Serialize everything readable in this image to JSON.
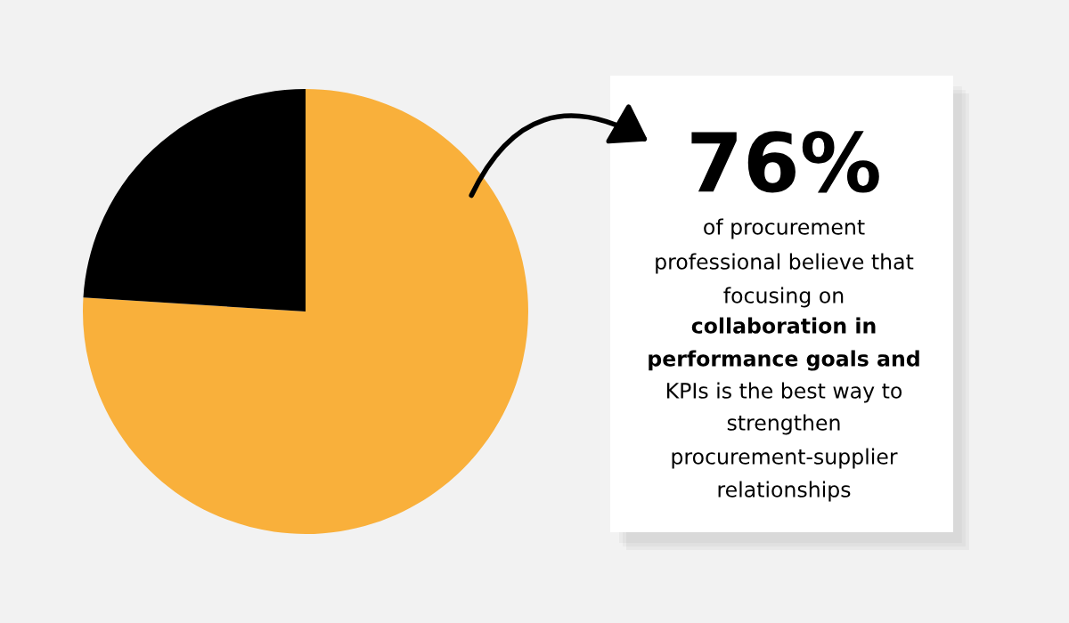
{
  "chart_data": {
    "type": "pie",
    "categories": [
      null,
      null
    ],
    "values": [
      76,
      24
    ],
    "colors": [
      "#f9b03b",
      "#000000"
    ],
    "annotations": [
      "76%",
      "of procurement",
      "professional believe that",
      "focusing on",
      "collaboration in",
      "performance goals and",
      "KPIs is the best way to",
      "strengthen",
      "procurement-supplier",
      "relationships"
    ]
  }
}
